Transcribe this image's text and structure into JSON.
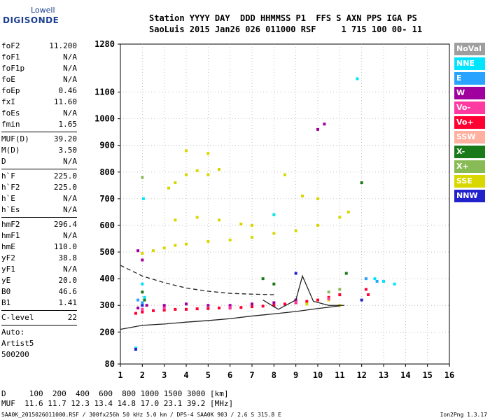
{
  "logo": {
    "line1": "Lowell",
    "line2": "DIGISONDE"
  },
  "header": {
    "line1": "Station YYYY DAY  DDD HHMMSS P1  FFS S AXN PPS IGA PS",
    "line2": "SaoLuis 2015 Jan26 026 011000 RSF     1 715 100 00- 11"
  },
  "params": {
    "group1": [
      {
        "k": "foF2",
        "v": "11.200"
      },
      {
        "k": "foF1",
        "v": "N/A"
      },
      {
        "k": "foF1p",
        "v": "N/A"
      },
      {
        "k": "foE",
        "v": "N/A"
      },
      {
        "k": "foEp",
        "v": "0.46"
      },
      {
        "k": "fxI",
        "v": "11.60"
      },
      {
        "k": "foEs",
        "v": "N/A"
      },
      {
        "k": "fmin",
        "v": "1.65"
      }
    ],
    "group2": [
      {
        "k": "MUF(D)",
        "v": "39.20"
      },
      {
        "k": "M(D)",
        "v": "3.50"
      },
      {
        "k": "D",
        "v": "N/A"
      }
    ],
    "group3": [
      {
        "k": "h`F",
        "v": "225.0"
      },
      {
        "k": "h`F2",
        "v": "225.0"
      },
      {
        "k": "h`E",
        "v": "N/A"
      },
      {
        "k": "h`Es",
        "v": "N/A"
      }
    ],
    "group4": [
      {
        "k": "hmF2",
        "v": "296.4"
      },
      {
        "k": "hmF1",
        "v": "N/A"
      },
      {
        "k": "hmE",
        "v": "110.0"
      },
      {
        "k": "yF2",
        "v": "38.8"
      },
      {
        "k": "yF1",
        "v": "N/A"
      },
      {
        "k": "yE",
        "v": "20.0"
      },
      {
        "k": "B0",
        "v": "46.6"
      },
      {
        "k": "B1",
        "v": "1.41"
      }
    ],
    "group5": [
      {
        "k": "C-level",
        "v": "22"
      }
    ],
    "extra": [
      "Auto:",
      "Artist5",
      "500200"
    ]
  },
  "legend": [
    {
      "label": "NoVal",
      "color": "#9e9e9e"
    },
    {
      "label": "NNE",
      "color": "#00e5ff"
    },
    {
      "label": "E",
      "color": "#29a3ff"
    },
    {
      "label": "W",
      "color": "#a0009e"
    },
    {
      "label": "Vo-",
      "color": "#ff3aa0"
    },
    {
      "label": "Vo+",
      "color": "#ff0033"
    },
    {
      "label": "SSW",
      "color": "#ffb0a0"
    },
    {
      "label": "X-",
      "color": "#1a7a1a"
    },
    {
      "label": "X+",
      "color": "#88bb55"
    },
    {
      "label": "SSE",
      "color": "#d8d800"
    },
    {
      "label": "NNW",
      "color": "#2222cc"
    }
  ],
  "chart_data": {
    "type": "scatter",
    "xlabel": "",
    "ylabel": "",
    "xlim": [
      1,
      16
    ],
    "ylim": [
      80,
      1280
    ],
    "x_ticks": [
      "1",
      "2",
      "3",
      "4",
      "5",
      "6",
      "7",
      "8",
      "9",
      "10",
      "11",
      "12",
      "13",
      "14",
      "15",
      "16"
    ],
    "y_ticks": [
      {
        "v": 80,
        "label": "80"
      },
      {
        "v": 200,
        "label": "200"
      },
      {
        "v": 300,
        "label": "300"
      },
      {
        "v": 400,
        "label": "400"
      },
      {
        "v": 500,
        "label": "500"
      },
      {
        "v": 600,
        "label": "600"
      },
      {
        "v": 700,
        "label": "700"
      },
      {
        "v": 800,
        "label": "800"
      },
      {
        "v": 900,
        "label": "900"
      },
      {
        "v": 1000,
        "label": "1000"
      },
      {
        "v": 1100,
        "label": "1100"
      },
      {
        "v": 1280,
        "label": "1280"
      }
    ],
    "grid": true,
    "series": [
      {
        "color": "#ff0033",
        "values": [
          [
            1.7,
            270
          ],
          [
            2.0,
            275
          ],
          [
            2.5,
            280
          ],
          [
            3.0,
            282
          ],
          [
            3.5,
            285
          ],
          [
            4.0,
            285
          ],
          [
            4.5,
            287
          ],
          [
            5.0,
            288
          ],
          [
            5.5,
            290
          ],
          [
            6.0,
            290
          ],
          [
            6.5,
            292
          ],
          [
            7.0,
            295
          ],
          [
            7.5,
            297
          ],
          [
            8.0,
            300
          ],
          [
            8.5,
            305
          ],
          [
            9.0,
            310
          ],
          [
            9.5,
            315
          ],
          [
            10.0,
            320
          ],
          [
            10.5,
            330
          ],
          [
            11.0,
            340
          ],
          [
            12.2,
            360
          ],
          [
            12.3,
            340
          ]
        ]
      },
      {
        "color": "#a0009e",
        "values": [
          [
            1.8,
            290
          ],
          [
            2.2,
            300
          ],
          [
            3.0,
            300
          ],
          [
            4.0,
            305
          ],
          [
            5.0,
            300
          ],
          [
            6.0,
            300
          ],
          [
            7.0,
            305
          ],
          [
            8.0,
            310
          ],
          [
            9.0,
            320
          ],
          [
            1.8,
            505
          ],
          [
            2.0,
            470
          ],
          [
            10.0,
            960
          ],
          [
            10.3,
            980
          ]
        ]
      },
      {
        "color": "#d8d800",
        "values": [
          [
            2.0,
            495
          ],
          [
            2.5,
            505
          ],
          [
            3.0,
            515
          ],
          [
            3.5,
            525
          ],
          [
            4.0,
            530
          ],
          [
            5.0,
            540
          ],
          [
            6.0,
            545
          ],
          [
            7.0,
            555
          ],
          [
            8.0,
            570
          ],
          [
            9.0,
            580
          ],
          [
            10.0,
            600
          ],
          [
            11.0,
            630
          ],
          [
            11.4,
            650
          ],
          [
            3.2,
            740
          ],
          [
            3.5,
            760
          ],
          [
            4.0,
            790
          ],
          [
            4.5,
            805
          ],
          [
            5.0,
            790
          ],
          [
            5.5,
            810
          ],
          [
            3.5,
            620
          ],
          [
            4.5,
            630
          ],
          [
            5.5,
            620
          ],
          [
            6.5,
            605
          ],
          [
            7.0,
            600
          ],
          [
            8.0,
            640
          ],
          [
            8.5,
            790
          ],
          [
            9.3,
            710
          ],
          [
            10.0,
            700
          ],
          [
            11.0,
            300
          ],
          [
            10.5,
            320
          ],
          [
            9.5,
            305
          ],
          [
            4.0,
            880
          ],
          [
            5.0,
            870
          ]
        ]
      },
      {
        "color": "#1a7a1a",
        "values": [
          [
            2.0,
            350
          ],
          [
            2.1,
            320
          ],
          [
            7.5,
            400
          ],
          [
            8.0,
            380
          ],
          [
            11.3,
            420
          ],
          [
            12.0,
            760
          ]
        ]
      },
      {
        "color": "#00e5ff",
        "values": [
          [
            2.0,
            380
          ],
          [
            2.1,
            330
          ],
          [
            2.05,
            700
          ],
          [
            8.0,
            640
          ],
          [
            11.8,
            1150
          ],
          [
            12.6,
            400
          ],
          [
            13.0,
            390
          ],
          [
            13.5,
            380
          ],
          [
            1.7,
            140
          ]
        ]
      },
      {
        "color": "#2222cc",
        "values": [
          [
            1.7,
            135
          ],
          [
            2.0,
            300
          ],
          [
            9.0,
            420
          ],
          [
            12.0,
            320
          ]
        ]
      },
      {
        "color": "#29a3ff",
        "values": [
          [
            1.8,
            320
          ],
          [
            2.0,
            310
          ],
          [
            12.2,
            400
          ],
          [
            12.7,
            390
          ]
        ]
      },
      {
        "color": "#ff3aa0",
        "values": [
          [
            2.0,
            285
          ],
          [
            3.0,
            290
          ],
          [
            6.0,
            292
          ],
          [
            9.0,
            312
          ],
          [
            10.5,
            325
          ]
        ]
      },
      {
        "color": "#88bb55",
        "values": [
          [
            10.5,
            350
          ],
          [
            11.0,
            360
          ],
          [
            2.0,
            780
          ]
        ]
      }
    ],
    "traces": [
      {
        "style": "solid",
        "values": [
          [
            1,
            210
          ],
          [
            2,
            225
          ],
          [
            3,
            230
          ],
          [
            4,
            237
          ],
          [
            5,
            243
          ],
          [
            6,
            250
          ],
          [
            7,
            260
          ],
          [
            8,
            268
          ],
          [
            9,
            277
          ],
          [
            10,
            288
          ],
          [
            11,
            298
          ]
        ]
      },
      {
        "style": "dashed",
        "values": [
          [
            1,
            450
          ],
          [
            2,
            410
          ],
          [
            3,
            385
          ],
          [
            4,
            365
          ],
          [
            5,
            353
          ],
          [
            6,
            345
          ],
          [
            7,
            342
          ],
          [
            8,
            340
          ]
        ]
      },
      {
        "style": "solid",
        "values": [
          [
            7.5,
            320
          ],
          [
            8.2,
            285
          ],
          [
            9.0,
            320
          ],
          [
            9.3,
            410
          ],
          [
            9.8,
            315
          ],
          [
            10.5,
            300
          ],
          [
            11.2,
            300
          ]
        ]
      }
    ]
  },
  "bottom": {
    "line1": "D     100  200  400  600  800 1000 1500 3000 [km]",
    "line2": "MUF  11.6 11.7 12.3 13.4 14.8 17.0 23.1 39.2 [MHz]"
  },
  "footer": "SAA0K_2015026011000.RSF / 300fx256h 50 kHz 5.0 km / DPS-4 SAA0K 903 / 2.6 S 315.8 E",
  "version": "Ion2Png 1.3.17"
}
